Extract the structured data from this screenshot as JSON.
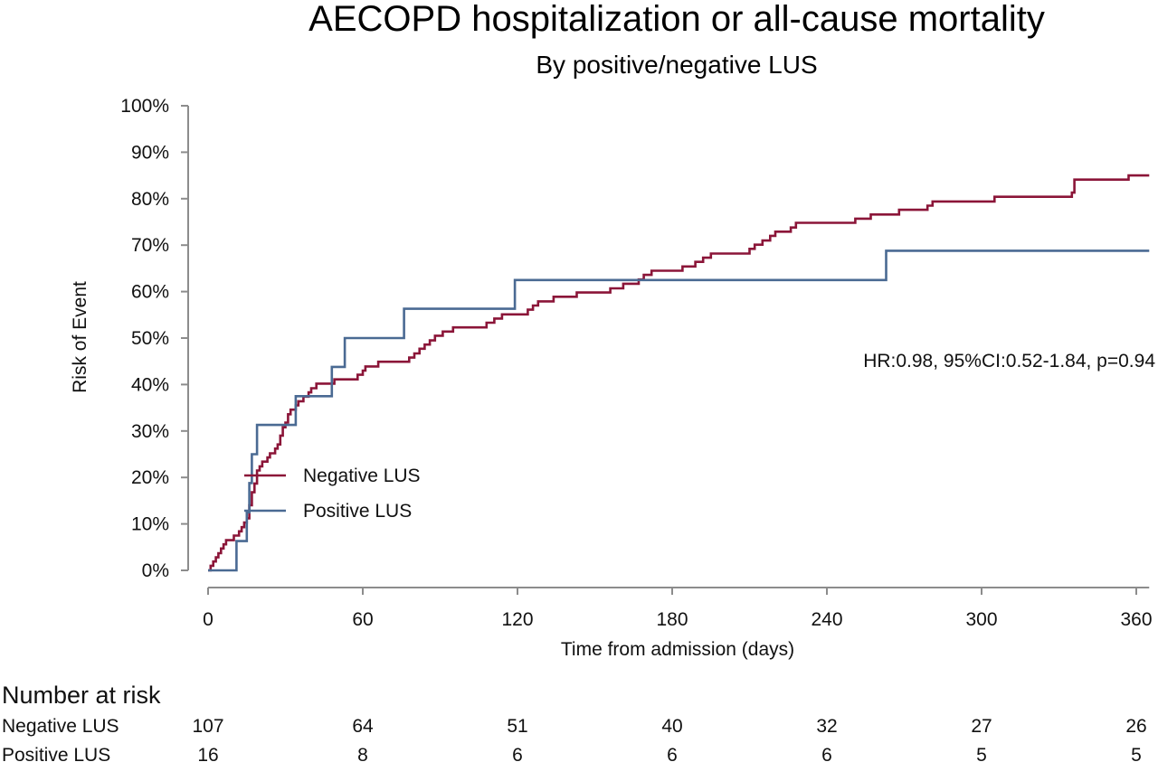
{
  "chart_data": {
    "type": "line",
    "title": "AECOPD hospitalization or all-cause mortality",
    "subtitle": "By positive/negative LUS",
    "xlabel": "Time from admission (days)",
    "ylabel": "Risk of Event",
    "xlim": [
      0,
      365
    ],
    "ylim": [
      0,
      100
    ],
    "x_ticks": [
      0,
      60,
      120,
      180,
      240,
      300,
      360
    ],
    "x_tick_labels": [
      "0",
      "60",
      "120",
      "180",
      "240",
      "300",
      "360"
    ],
    "y_ticks": [
      0,
      10,
      20,
      30,
      40,
      50,
      60,
      70,
      80,
      90,
      100
    ],
    "y_tick_labels": [
      "0%",
      "10%",
      "20%",
      "30%",
      "40%",
      "50%",
      "60%",
      "70%",
      "80%",
      "90%",
      "100%"
    ],
    "grid": false,
    "step": true,
    "legend_position": "lower-left",
    "annotation": "HR:0.98, 95%CI:0.52-1.84, p=0.94",
    "series": [
      {
        "name": "Negative LUS",
        "color": "#8b1538",
        "x": [
          0,
          1,
          2,
          3,
          4,
          5,
          6,
          7,
          9,
          10,
          12,
          13,
          14,
          15,
          16,
          17,
          18,
          19,
          20,
          21,
          23,
          24,
          26,
          27,
          28,
          29,
          30,
          31,
          32,
          34,
          35,
          37,
          39,
          40,
          42,
          47,
          49,
          56,
          58,
          60,
          61,
          63,
          66,
          71,
          78,
          80,
          82,
          84,
          86,
          88,
          91,
          95,
          106,
          108,
          111,
          114,
          120,
          124,
          126,
          128,
          131,
          134,
          137,
          143,
          150,
          156,
          161,
          167,
          169,
          170,
          172,
          184,
          189,
          190,
          192,
          195,
          199,
          210,
          212,
          213,
          215,
          218,
          219,
          220,
          226,
          228,
          237,
          251,
          257,
          268,
          279,
          281,
          298,
          305,
          335,
          336,
          357,
          365
        ],
        "y": [
          0,
          1,
          1.9,
          2.8,
          3.7,
          4.7,
          5.6,
          6.5,
          6.5,
          7.5,
          8.4,
          9.3,
          10.3,
          11.2,
          14,
          16.8,
          18.7,
          21.5,
          22.4,
          23.4,
          24.3,
          25.2,
          26.2,
          27.1,
          29,
          30.8,
          31.8,
          33.6,
          34.6,
          35.5,
          36.4,
          37.4,
          38.3,
          39.2,
          40.2,
          40.2,
          41.1,
          41.1,
          42.1,
          43,
          43.9,
          43.9,
          44.9,
          44.9,
          45.8,
          46.7,
          47.7,
          48.6,
          49.5,
          50.5,
          51.4,
          52.3,
          52.3,
          53.3,
          54.2,
          55.1,
          55.1,
          56.1,
          57,
          57.9,
          57.9,
          58.9,
          58.9,
          59.8,
          59.8,
          60.7,
          61.7,
          62.6,
          63.6,
          63.6,
          64.5,
          65.4,
          66.4,
          66.4,
          67.3,
          68.2,
          68.2,
          69.2,
          70.1,
          70.1,
          71,
          72,
          72,
          72.9,
          73.8,
          74.8,
          74.8,
          75.7,
          76.6,
          77.6,
          78.5,
          79.4,
          79.4,
          80.4,
          81.3,
          84.1,
          85,
          85
        ]
      },
      {
        "name": "Positive LUS",
        "color": "#4a6a93",
        "x": [
          0,
          11,
          15,
          16,
          17,
          19,
          34,
          48,
          53,
          76,
          119,
          263,
          365
        ],
        "y": [
          0,
          6.3,
          12.5,
          18.8,
          25,
          31.3,
          37.5,
          43.8,
          50,
          56.3,
          62.5,
          68.8,
          68.8
        ]
      }
    ],
    "number_at_risk": {
      "heading": "Number at risk",
      "times": [
        0,
        60,
        120,
        180,
        240,
        300,
        360
      ],
      "rows": [
        {
          "label": "Negative LUS",
          "values": [
            "107",
            "64",
            "51",
            "40",
            "32",
            "27",
            "26"
          ]
        },
        {
          "label": "Positive LUS",
          "values": [
            "16",
            "8",
            "6",
            "6",
            "6",
            "5",
            "5"
          ]
        }
      ]
    }
  }
}
